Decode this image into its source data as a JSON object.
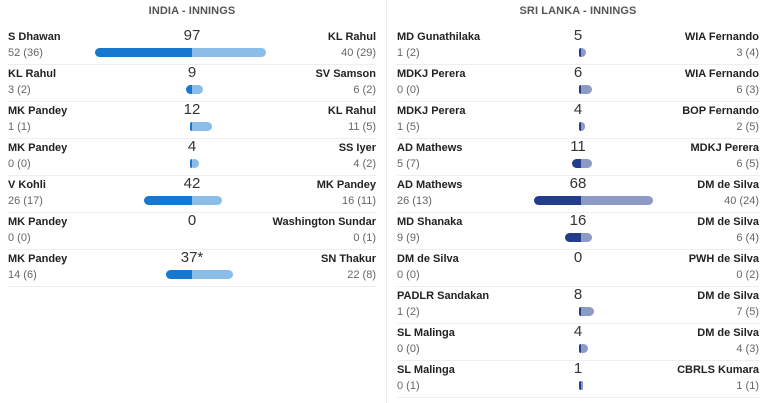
{
  "india": {
    "title": "INDIA - INNINGS",
    "colors": {
      "left": "#1877cf",
      "right": "#8bbde9"
    },
    "partnerships": [
      {
        "total": "97",
        "left_name": "S Dhawan",
        "left_score": "52 (36)",
        "right_name": "KL Rahul",
        "right_score": "40 (29)",
        "left_runs": 52,
        "right_runs": 40
      },
      {
        "total": "9",
        "left_name": "KL Rahul",
        "left_score": "3 (2)",
        "right_name": "SV Samson",
        "right_score": "6 (2)",
        "left_runs": 3,
        "right_runs": 6
      },
      {
        "total": "12",
        "left_name": "MK Pandey",
        "left_score": "1 (1)",
        "right_name": "KL Rahul",
        "right_score": "11 (5)",
        "left_runs": 1,
        "right_runs": 11
      },
      {
        "total": "4",
        "left_name": "MK Pandey",
        "left_score": "0 (0)",
        "right_name": "SS Iyer",
        "right_score": "4 (2)",
        "left_runs": 0,
        "right_runs": 4
      },
      {
        "total": "42",
        "left_name": "V Kohli",
        "left_score": "26 (17)",
        "right_name": "MK Pandey",
        "right_score": "16 (11)",
        "left_runs": 26,
        "right_runs": 16
      },
      {
        "total": "0",
        "left_name": "MK Pandey",
        "left_score": "0 (0)",
        "right_name": "Washington Sundar",
        "right_score": "0 (1)",
        "left_runs": 0,
        "right_runs": 0
      },
      {
        "total": "37*",
        "left_name": "MK Pandey",
        "left_score": "14 (6)",
        "right_name": "SN Thakur",
        "right_score": "22 (8)",
        "left_runs": 14,
        "right_runs": 22
      }
    ]
  },
  "srilanka": {
    "title": "SRI LANKA - INNINGS",
    "colors": {
      "left": "#233d8a",
      "right": "#8d9ac4"
    },
    "partnerships": [
      {
        "total": "5",
        "left_name": "MD Gunathilaka",
        "left_score": "1 (2)",
        "right_name": "WIA Fernando",
        "right_score": "3 (4)",
        "left_runs": 1,
        "right_runs": 3
      },
      {
        "total": "6",
        "left_name": "MDKJ Perera",
        "left_score": "0 (0)",
        "right_name": "WIA Fernando",
        "right_score": "6 (3)",
        "left_runs": 0,
        "right_runs": 6
      },
      {
        "total": "4",
        "left_name": "MDKJ Perera",
        "left_score": "1 (5)",
        "right_name": "BOP Fernando",
        "right_score": "2 (5)",
        "left_runs": 1,
        "right_runs": 2
      },
      {
        "total": "11",
        "left_name": "AD Mathews",
        "left_score": "5 (7)",
        "right_name": "MDKJ Perera",
        "right_score": "6 (5)",
        "left_runs": 5,
        "right_runs": 6
      },
      {
        "total": "68",
        "left_name": "AD Mathews",
        "left_score": "26 (13)",
        "right_name": "DM de Silva",
        "right_score": "40 (24)",
        "left_runs": 26,
        "right_runs": 40
      },
      {
        "total": "16",
        "left_name": "MD Shanaka",
        "left_score": "9 (9)",
        "right_name": "DM de Silva",
        "right_score": "6 (4)",
        "left_runs": 9,
        "right_runs": 6
      },
      {
        "total": "0",
        "left_name": "DM de Silva",
        "left_score": "0 (0)",
        "right_name": "PWH de Silva",
        "right_score": "0 (2)",
        "left_runs": 0,
        "right_runs": 0
      },
      {
        "total": "8",
        "left_name": "PADLR Sandakan",
        "left_score": "1 (2)",
        "right_name": "DM de Silva",
        "right_score": "7 (5)",
        "left_runs": 1,
        "right_runs": 7
      },
      {
        "total": "4",
        "left_name": "SL Malinga",
        "left_score": "0 (0)",
        "right_name": "DM de Silva",
        "right_score": "4 (3)",
        "left_runs": 0,
        "right_runs": 4
      },
      {
        "total": "1",
        "left_name": "SL Malinga",
        "left_score": "0 (1)",
        "right_name": "CBRLS Kumara",
        "right_score": "1 (1)",
        "left_runs": 0,
        "right_runs": 1
      }
    ]
  }
}
